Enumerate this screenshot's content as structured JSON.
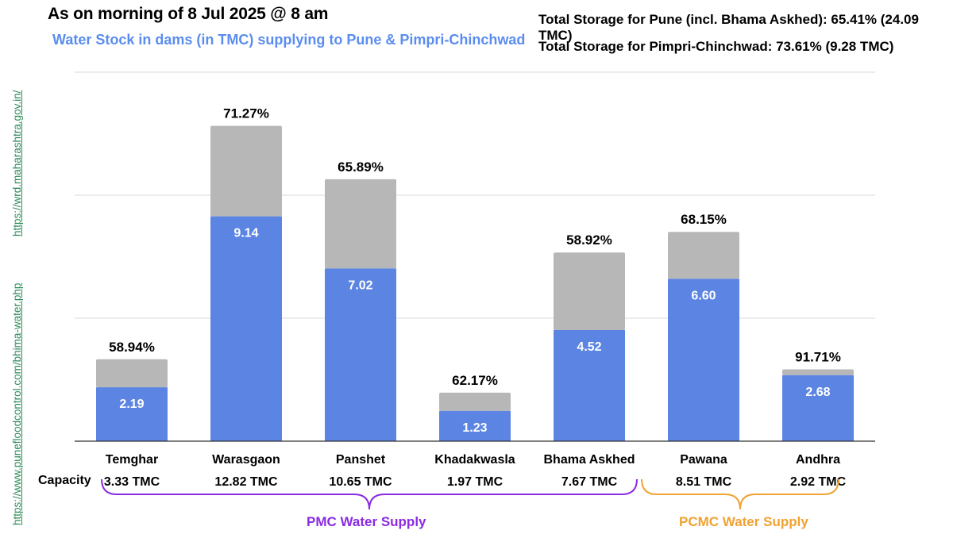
{
  "header": {
    "title": "As on morning of 8 Jul 2025 @ 8 am",
    "subtitle": "Water Stock in dams (in TMC) supplying to Pune & Pimpri-Chinchwad",
    "total_pune": "Total Storage for Pune (incl. Bhama Askhed): 65.41% (24.09 TMC)",
    "total_pcmc": "Total Storage for Pimpri-Chinchwad: 73.61% (9.28 TMC)"
  },
  "links": {
    "wrd": "https://wrd.maharashtra.gov.in/",
    "punefloodcontrol": "https://www.punefloodcontrol.com/bhima-water.php"
  },
  "capacity_label": "Capacity",
  "groups": {
    "pmc": "PMC Water Supply",
    "pcmc": "PCMC Water Supply"
  },
  "colors": {
    "stock": "#5b84e3",
    "capacity": "#b7b7b7",
    "pmc": "#8a2be2",
    "pcmc": "#f0a232",
    "link": "#2e8b57",
    "gridline": "#d9d9d9"
  },
  "chart_data": {
    "type": "bar",
    "stacked": true,
    "title": "Water Stock in dams (in TMC) supplying to Pune & Pimpri-Chinchwad",
    "categories": [
      "Temghar",
      "Warasgaon",
      "Panshet",
      "Khadakwasla",
      "Bhama Askhed",
      "Pawana",
      "Andhra"
    ],
    "series": [
      {
        "values": [
          2.19,
          9.14,
          7.02,
          1.23,
          4.52,
          6.6,
          2.68
        ]
      },
      {
        "values": [
          1.14,
          3.68,
          3.63,
          0.74,
          3.15,
          1.91,
          0.24
        ]
      }
    ],
    "stock_labels": [
      "2.19",
      "9.14",
      "7.02",
      "1.23",
      "4.52",
      "6.60",
      "2.68"
    ],
    "percent_labels": [
      "58.94%",
      "71.27%",
      "65.89%",
      "62.17%",
      "58.92%",
      "68.15%",
      "91.71%"
    ],
    "capacity_labels": [
      "3.33 TMC",
      "12.82 TMC",
      "10.65 TMC",
      "1.97 TMC",
      "7.67 TMC",
      "8.51 TMC",
      "2.92 TMC"
    ],
    "ylim": [
      0,
      15
    ],
    "grid": true,
    "legend": "none"
  }
}
